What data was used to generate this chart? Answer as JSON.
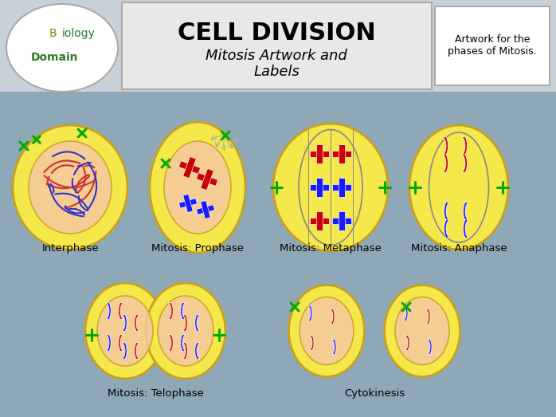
{
  "title": "CELL DIVISION",
  "subtitle": "Mitosis Artwork and\nLabels",
  "side_text": "Artwork for the\nphases of Mitosis.",
  "bg_color": "#8fa8b8",
  "header_bg": "#c8d0d8",
  "white_box_bg": "#f0f0f0",
  "cell_outer_color": "#f5e84a",
  "cell_inner_color": "#f5c8a0",
  "cell_outline": "#c8a020",
  "phase_labels": [
    "Interphase",
    "Mitosis: Prophase",
    "Mitosis: Metaphase",
    "Mitosis: Anaphase",
    "Mitosis: Telophase",
    "Cytokinesis"
  ],
  "red_chrom": "#cc0000",
  "blue_chrom": "#1a1aff",
  "green_arrow": "#00aa00",
  "spindle_color": "#888888"
}
